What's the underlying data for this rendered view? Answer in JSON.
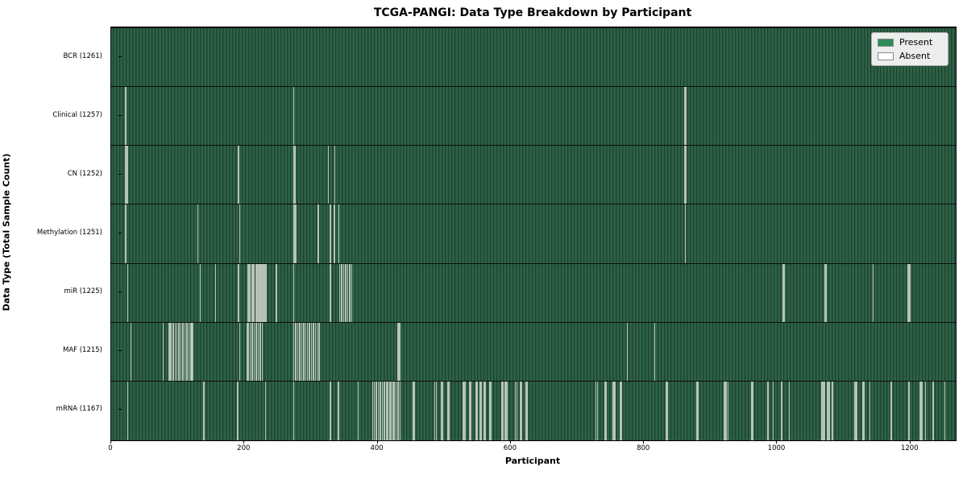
{
  "title": "TCGA-PANGI: Data Type Breakdown by Participant",
  "xlabel": "Participant",
  "ylabel": "Data Type (Total Sample Count)",
  "legend": {
    "items": [
      {
        "label": "Present",
        "color": "#2E8B57"
      },
      {
        "label": "Absent",
        "color": "#FFFFFF"
      }
    ]
  },
  "colors": {
    "present": "#2E8B57",
    "absent": "#FFFFFF",
    "field_light": "#2E6247",
    "field_mid": "#28573F",
    "field_dark": "#1D4330",
    "absent_line": "#CBD2CB",
    "row_divider": "#0D0D0D",
    "legend_bg": "#EBEEEB",
    "legend_border": "#AFAFAF"
  },
  "chart_data": {
    "type": "heatmap",
    "title": "TCGA-PANGI: Data Type Breakdown by Participant",
    "xlabel": "Participant",
    "ylabel": "Data Type (Total Sample Count)",
    "legend_entries": [
      "Present",
      "Absent"
    ],
    "legend_position": "upper right",
    "grid": false,
    "total_participants": 1261,
    "x_axis": {
      "ticks": [
        0,
        200,
        400,
        600,
        800,
        1000,
        1200
      ],
      "range": [
        0,
        1268
      ]
    },
    "rows": [
      {
        "name": "BCR",
        "count": 1261,
        "label": "BCR (1261)",
        "absent": []
      },
      {
        "name": "Clinical",
        "count": 1257,
        "label": "Clinical (1257)",
        "absent": [
          21,
          273,
          860,
          862
        ]
      },
      {
        "name": "CN",
        "count": 1252,
        "label": "CN (1252)",
        "absent": [
          21,
          23,
          190,
          273,
          275,
          325,
          335,
          860,
          862
        ]
      },
      {
        "name": "Methylation",
        "count": 1251,
        "label": "Methylation (1251)",
        "absent": [
          21,
          129,
          192,
          274,
          276,
          310,
          328,
          334,
          341,
          861
        ]
      },
      {
        "name": "miR",
        "count": 1225,
        "label": "miR (1225)",
        "absent": [
          24,
          133,
          156,
          190,
          204,
          206,
          208,
          210,
          212,
          214,
          216,
          218,
          220,
          222,
          224,
          226,
          228,
          230,
          232,
          247,
          273,
          328,
          342,
          345,
          348,
          351,
          354,
          357,
          360,
          1008,
          1010,
          1071,
          1073,
          1143,
          1196,
          1198
        ]
      },
      {
        "name": "MAF",
        "count": 1215,
        "label": "MAF (1215)",
        "absent": [
          29,
          77,
          86,
          88,
          89,
          92,
          95,
          98,
          101,
          104,
          107,
          110,
          113,
          116,
          119,
          120,
          122,
          192,
          203,
          205,
          208,
          211,
          214,
          217,
          220,
          223,
          226,
          273,
          276,
          279,
          282,
          285,
          288,
          291,
          294,
          297,
          300,
          303,
          306,
          308,
          311,
          429,
          431,
          433,
          774,
          815
        ]
      },
      {
        "name": "mRNA",
        "count": 1167,
        "label": "mRNA (1167)",
        "absent": [
          24,
          138,
          189,
          231,
          273,
          328,
          340,
          370,
          392,
          394,
          397,
          400,
          403,
          406,
          409,
          412,
          414,
          417,
          419,
          422,
          424,
          427,
          430,
          433,
          452,
          454,
          485,
          487,
          495,
          497,
          504,
          506,
          528,
          530,
          537,
          539,
          547,
          549,
          553,
          555,
          559,
          561,
          567,
          569,
          585,
          587,
          591,
          593,
          606,
          608,
          613,
          615,
          622,
          624,
          727,
          729,
          740,
          742,
          752,
          754,
          756,
          763,
          765,
          832,
          834,
          878,
          880,
          920,
          922,
          925,
          961,
          963,
          985,
          993,
          1006,
          1017,
          1066,
          1068,
          1070,
          1075,
          1077,
          1082,
          1116,
          1118,
          1128,
          1130,
          1138,
          1170,
          1197,
          1214,
          1216,
          1222,
          1233,
          1251
        ]
      }
    ]
  }
}
